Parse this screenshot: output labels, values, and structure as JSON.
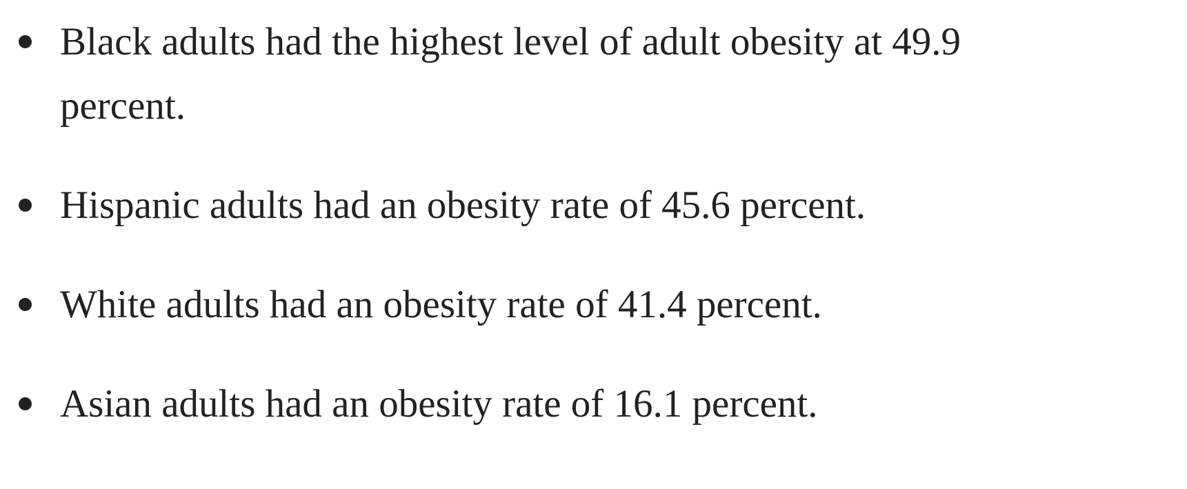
{
  "list": {
    "items": [
      "Black adults had the highest level of adult obesity at 49.9 percent.",
      "Hispanic adults had an obesity rate of 45.6 percent.",
      "White adults had an obesity rate of 41.4 percent.",
      "Asian adults had an obesity rate of 16.1 percent."
    ]
  }
}
